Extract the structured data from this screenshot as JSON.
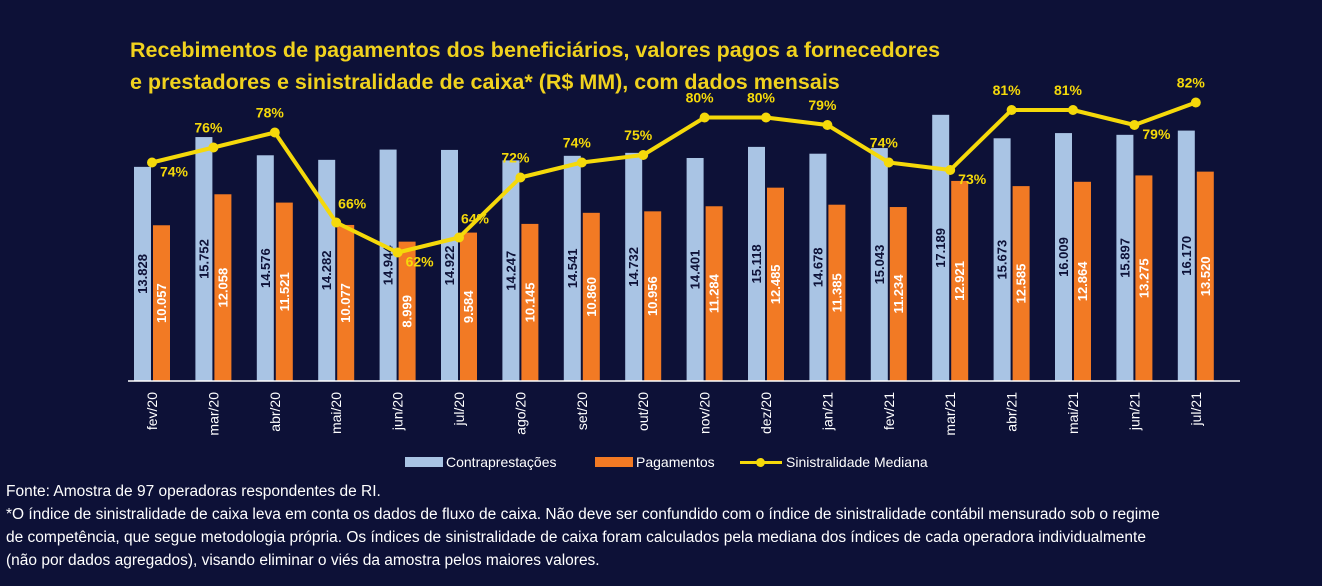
{
  "title_lines": [
    "Recebimentos de pagamentos dos beneficiários, valores pagos a fornecedores",
    "e prestadores e sinistralidade de caixa* (R$ MM), com dados mensais"
  ],
  "colors": {
    "background": "#0d1137",
    "contraprestacoes": "#a9c4e4",
    "pagamentos": "#f27a24",
    "sinistralidade": "#f5d90a",
    "title": "#f0d21e"
  },
  "legend": {
    "contraprestacoes": "Contraprestações",
    "pagamentos": "Pagamentos",
    "sinistralidade": "Sinistralidade Mediana"
  },
  "notes": {
    "source": "Fonte:  Amostra de 97 operadoras respondentes de RI.",
    "footnote_lines": [
      "*O índice de sinistralidade de caixa leva em conta os dados de fluxo de caixa. Não deve ser confundido com o índice de sinistralidade contábil mensurado sob o regime",
      "de competência, que segue metodologia própria. Os índices de sinistralidade de caixa foram calculados pela mediana dos índices de cada operadora individualmente",
      "(não por dados agregados), visando eliminar o viés da amostra pelos maiores valores."
    ]
  },
  "chart_data": {
    "type": "bar",
    "categories": [
      "fev/20",
      "mar/20",
      "abr/20",
      "mai/20",
      "jun/20",
      "jul/20",
      "ago/20",
      "set/20",
      "out/20",
      "nov/20",
      "dez/20",
      "jan/21",
      "fev/21",
      "mar/21",
      "abr/21",
      "mai/21",
      "jun/21",
      "jul/21"
    ],
    "series": [
      {
        "name": "Contraprestações",
        "values": [
          13828,
          15752,
          14576,
          14282,
          14944,
          14922,
          14247,
          14541,
          14732,
          14401,
          15118,
          14678,
          15043,
          17189,
          15673,
          16009,
          15897,
          16170
        ],
        "labels": [
          "13.828",
          "15.752",
          "14.576",
          "14.282",
          "14.944",
          "14.922",
          "14.247",
          "14.541",
          "14.732",
          "14.401",
          "15.118",
          "14.678",
          "15.043",
          "17.189",
          "15.673",
          "16.009",
          "15.897",
          "16.170"
        ]
      },
      {
        "name": "Pagamentos",
        "values": [
          10057,
          12058,
          11521,
          10077,
          8999,
          9584,
          10145,
          10860,
          10956,
          11284,
          12485,
          11385,
          11234,
          12921,
          12585,
          12864,
          13275,
          13520
        ],
        "labels": [
          "10.057",
          "12.058",
          "11.521",
          "10.077",
          "8.999",
          "9.584",
          "10.145",
          "10.860",
          "10.956",
          "11.284",
          "12.485",
          "11.385",
          "11.234",
          "12.921",
          "12.585",
          "12.864",
          "13.275",
          "13.520"
        ]
      },
      {
        "name": "Sinistralidade Mediana",
        "type": "line",
        "values": [
          74,
          76,
          78,
          66,
          62,
          64,
          72,
          74,
          75,
          80,
          80,
          79,
          74,
          73,
          81,
          81,
          79,
          82
        ],
        "labels": [
          "74%",
          "76%",
          "78%",
          "66%",
          "62%",
          "64%",
          "72%",
          "74%",
          "75%",
          "80%",
          "80%",
          "79%",
          "74%",
          "73%",
          "81%",
          "81%",
          "79%",
          "82%"
        ]
      }
    ],
    "ylim_bars": [
      0,
      17500
    ],
    "ylim_line": [
      45,
      85
    ],
    "grid": false,
    "legend_position": "bottom"
  }
}
